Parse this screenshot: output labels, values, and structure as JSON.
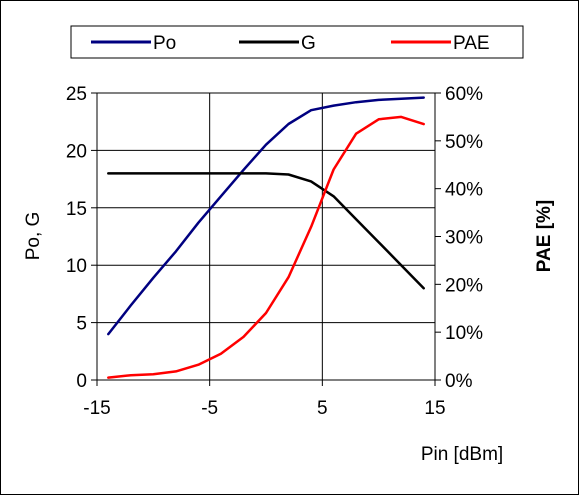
{
  "chart_data": {
    "type": "line",
    "title": "",
    "xlabel": "Pin [dBm]",
    "ylabel": "Po, G",
    "y2label": "PAE [%]",
    "xlim": [
      -15,
      15
    ],
    "ylim": [
      0,
      25
    ],
    "y2lim": [
      0,
      60
    ],
    "xticks": [
      -15,
      -5,
      5,
      15
    ],
    "yticks": [
      0,
      5,
      10,
      15,
      20,
      25
    ],
    "y2ticks": [
      "0%",
      "10%",
      "20%",
      "30%",
      "40%",
      "50%",
      "60%"
    ],
    "y2tick_values": [
      0,
      10,
      20,
      30,
      40,
      50,
      60
    ],
    "grid": true,
    "legend_position": "top",
    "series": [
      {
        "name": "Po",
        "axis": "left",
        "color": "#000080",
        "x": [
          -14,
          -12,
          -10,
          -8,
          -6,
          -4,
          -2,
          0,
          2,
          4,
          6,
          8,
          10,
          12,
          14
        ],
        "y": [
          4,
          6.5,
          8.9,
          11.2,
          13.7,
          16,
          18.3,
          20.5,
          22.3,
          23.5,
          23.9,
          24.2,
          24.4,
          24.5,
          24.6
        ]
      },
      {
        "name": "G",
        "axis": "left",
        "color": "#000000",
        "x": [
          -14,
          -12,
          -10,
          -8,
          -6,
          -4,
          -2,
          0,
          2,
          4,
          6,
          8,
          10,
          12,
          14
        ],
        "y": [
          18,
          18,
          18,
          18,
          18,
          18,
          18,
          18,
          17.9,
          17.3,
          16,
          14,
          12,
          10,
          8
        ]
      },
      {
        "name": "PAE",
        "axis": "right",
        "color": "#ff0000",
        "x": [
          -14,
          -12,
          -10,
          -8,
          -6,
          -4,
          -2,
          0,
          2,
          4,
          6,
          8,
          10,
          12,
          14
        ],
        "y": [
          0.5,
          1,
          1.2,
          1.8,
          3.2,
          5.5,
          9,
          14,
          21.5,
          32,
          44,
          51.5,
          54.5,
          55,
          53.5
        ]
      }
    ]
  }
}
